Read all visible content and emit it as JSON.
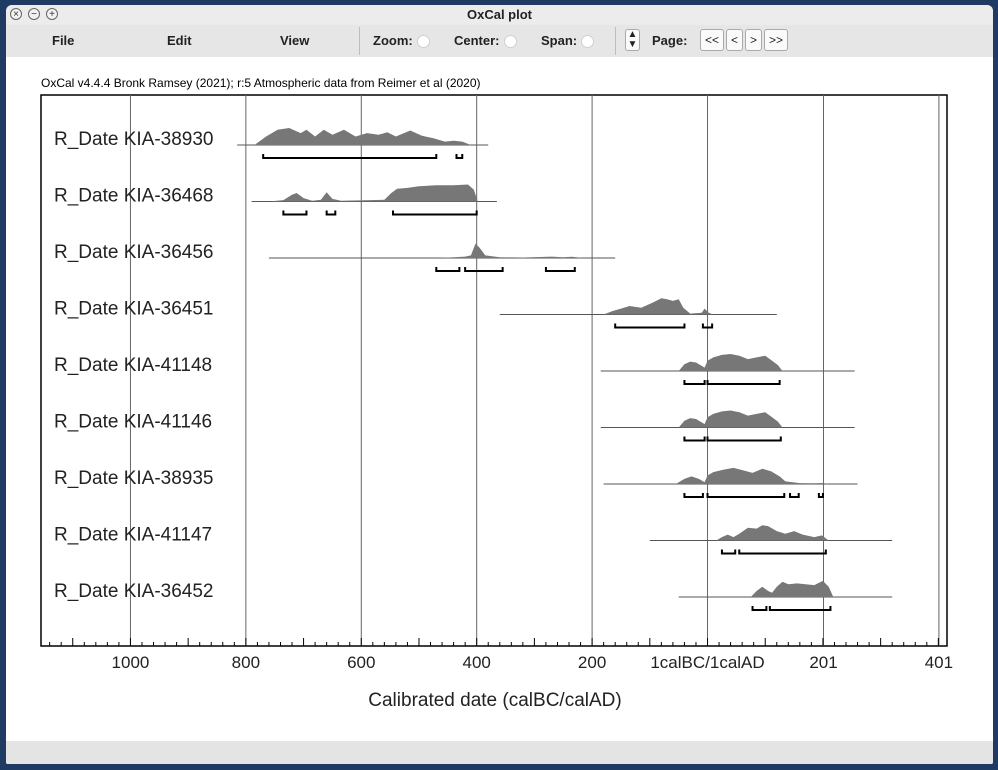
{
  "window": {
    "title": "OxCal plot"
  },
  "toolbar": {
    "file": "File",
    "edit": "Edit",
    "view": "View",
    "zoom": "Zoom:",
    "center": "Center:",
    "span": "Span:",
    "page": "Page:",
    "first": "<<",
    "prev": "<",
    "next": ">",
    "last": ">>"
  },
  "chart_data": {
    "type": "multiple-plot",
    "header": "OxCal v4.4.4 Bronk Ramsey (2021); r:5 Atmospheric data from Reimer et al (2020)",
    "xlabel": "Calibrated date (calBC/calAD)",
    "x_range": [
      -1155,
      415
    ],
    "tick_labels": [
      {
        "v": -1000,
        "label": "1000"
      },
      {
        "v": -800,
        "label": "800"
      },
      {
        "v": -600,
        "label": "600"
      },
      {
        "v": -400,
        "label": "400"
      },
      {
        "v": -200,
        "label": "200"
      },
      {
        "v": 0,
        "label": "1calBC/1calAD"
      },
      {
        "v": 201,
        "label": "201"
      },
      {
        "v": 401,
        "label": "401"
      }
    ],
    "gridlines": [
      -1000,
      -800,
      -600,
      -400,
      -200,
      0,
      201,
      401
    ],
    "dates": [
      {
        "name": "R_Date KIA-38930",
        "line": [
          -815,
          -380
        ],
        "hpd": [
          [
            -770,
            -470
          ],
          [
            -435,
            -425
          ]
        ],
        "dist": [
          [
            -785,
            0
          ],
          [
            -765,
            0.5
          ],
          [
            -745,
            0.9
          ],
          [
            -725,
            1
          ],
          [
            -705,
            0.7
          ],
          [
            -695,
            0.9
          ],
          [
            -680,
            0.5
          ],
          [
            -665,
            0.9
          ],
          [
            -650,
            0.6
          ],
          [
            -630,
            0.9
          ],
          [
            -610,
            0.5
          ],
          [
            -590,
            0.7
          ],
          [
            -570,
            0.6
          ],
          [
            -555,
            0.75
          ],
          [
            -540,
            0.5
          ],
          [
            -515,
            0.85
          ],
          [
            -495,
            0.55
          ],
          [
            -475,
            0.4
          ],
          [
            -455,
            0.2
          ],
          [
            -440,
            0.25
          ],
          [
            -425,
            0.2
          ],
          [
            -410,
            0
          ]
        ]
      },
      {
        "name": "R_Date KIA-36468",
        "line": [
          -790,
          -365
        ],
        "hpd": [
          [
            -735,
            -695
          ],
          [
            -660,
            -645
          ],
          [
            -545,
            -400
          ]
        ],
        "dist": [
          [
            -760,
            0
          ],
          [
            -735,
            0.08
          ],
          [
            -720,
            0.4
          ],
          [
            -712,
            0.5
          ],
          [
            -700,
            0.2
          ],
          [
            -685,
            0.05
          ],
          [
            -670,
            0.1
          ],
          [
            -660,
            0.55
          ],
          [
            -650,
            0.15
          ],
          [
            -635,
            0.05
          ],
          [
            -560,
            0.1
          ],
          [
            -548,
            0.5
          ],
          [
            -538,
            0.75
          ],
          [
            -520,
            0.8
          ],
          [
            -500,
            0.9
          ],
          [
            -470,
            0.95
          ],
          [
            -440,
            0.95
          ],
          [
            -415,
            1
          ],
          [
            -405,
            0.7
          ],
          [
            -398,
            0
          ]
        ]
      },
      {
        "name": "R_Date KIA-36456",
        "line": [
          -760,
          -160
        ],
        "hpd": [
          [
            -470,
            -430
          ],
          [
            -420,
            -355
          ],
          [
            -280,
            -230
          ]
        ],
        "dist": [
          [
            -470,
            0
          ],
          [
            -440,
            0.05
          ],
          [
            -420,
            0.08
          ],
          [
            -410,
            0.15
          ],
          [
            -402,
            0.85
          ],
          [
            -395,
            0.6
          ],
          [
            -385,
            0.15
          ],
          [
            -360,
            0.05
          ],
          [
            -320,
            0.03
          ],
          [
            -290,
            0.06
          ],
          [
            -270,
            0.08
          ],
          [
            -250,
            0.05
          ],
          [
            -235,
            0.07
          ],
          [
            -215,
            0
          ]
        ]
      },
      {
        "name": "R_Date KIA-36451",
        "line": [
          -360,
          120
        ],
        "hpd": [
          [
            -160,
            -40
          ],
          [
            -8,
            8
          ]
        ],
        "dist": [
          [
            -180,
            0
          ],
          [
            -165,
            0.2
          ],
          [
            -150,
            0.35
          ],
          [
            -135,
            0.5
          ],
          [
            -115,
            0.4
          ],
          [
            -95,
            0.7
          ],
          [
            -80,
            0.95
          ],
          [
            -70,
            0.9
          ],
          [
            -60,
            0.8
          ],
          [
            -50,
            0.9
          ],
          [
            -42,
            0.4
          ],
          [
            -30,
            0.05
          ],
          [
            -10,
            0.1
          ],
          [
            -5,
            0.35
          ],
          [
            2,
            0.1
          ],
          [
            10,
            0
          ]
        ]
      },
      {
        "name": "R_Date KIA-41148",
        "line": [
          -185,
          255
        ],
        "hpd": [
          [
            -40,
            -5
          ],
          [
            0,
            125
          ]
        ],
        "dist": [
          [
            -50,
            0
          ],
          [
            -40,
            0.4
          ],
          [
            -30,
            0.55
          ],
          [
            -20,
            0.5
          ],
          [
            -10,
            0.3
          ],
          [
            -5,
            0.2
          ],
          [
            0,
            0.6
          ],
          [
            10,
            0.8
          ],
          [
            25,
            0.95
          ],
          [
            40,
            1
          ],
          [
            55,
            0.9
          ],
          [
            70,
            0.7
          ],
          [
            85,
            0.8
          ],
          [
            100,
            0.9
          ],
          [
            112,
            0.6
          ],
          [
            122,
            0.35
          ],
          [
            130,
            0
          ]
        ]
      },
      {
        "name": "R_Date KIA-41146",
        "line": [
          -185,
          255
        ],
        "hpd": [
          [
            -40,
            -5
          ],
          [
            0,
            127
          ]
        ],
        "dist": [
          [
            -50,
            0
          ],
          [
            -40,
            0.4
          ],
          [
            -30,
            0.55
          ],
          [
            -20,
            0.5
          ],
          [
            -10,
            0.3
          ],
          [
            -5,
            0.2
          ],
          [
            0,
            0.6
          ],
          [
            10,
            0.8
          ],
          [
            25,
            0.95
          ],
          [
            40,
            1
          ],
          [
            55,
            0.9
          ],
          [
            70,
            0.7
          ],
          [
            85,
            0.8
          ],
          [
            100,
            0.9
          ],
          [
            112,
            0.6
          ],
          [
            122,
            0.35
          ],
          [
            130,
            0
          ]
        ]
      },
      {
        "name": "R_Date KIA-38935",
        "line": [
          -180,
          260
        ],
        "hpd": [
          [
            -40,
            -8
          ],
          [
            0,
            133
          ],
          [
            143,
            158
          ],
          [
            193,
            200
          ]
        ],
        "dist": [
          [
            -55,
            0
          ],
          [
            -40,
            0.3
          ],
          [
            -28,
            0.45
          ],
          [
            -15,
            0.3
          ],
          [
            -5,
            0.1
          ],
          [
            0,
            0.5
          ],
          [
            10,
            0.7
          ],
          [
            28,
            0.85
          ],
          [
            45,
            0.95
          ],
          [
            62,
            0.8
          ],
          [
            78,
            0.65
          ],
          [
            95,
            0.9
          ],
          [
            110,
            0.75
          ],
          [
            125,
            0.45
          ],
          [
            135,
            0.15
          ],
          [
            160,
            0.05
          ],
          [
            185,
            0.04
          ],
          [
            200,
            0.06
          ],
          [
            210,
            0
          ]
        ]
      },
      {
        "name": "R_Date KIA-41147",
        "line": [
          -100,
          320
        ],
        "hpd": [
          [
            25,
            48
          ],
          [
            55,
            205
          ]
        ],
        "dist": [
          [
            15,
            0
          ],
          [
            25,
            0.2
          ],
          [
            35,
            0.35
          ],
          [
            45,
            0.2
          ],
          [
            55,
            0.4
          ],
          [
            70,
            0.75
          ],
          [
            85,
            0.7
          ],
          [
            95,
            0.9
          ],
          [
            105,
            0.85
          ],
          [
            120,
            0.55
          ],
          [
            135,
            0.4
          ],
          [
            150,
            0.55
          ],
          [
            165,
            0.35
          ],
          [
            185,
            0.2
          ],
          [
            198,
            0.3
          ],
          [
            210,
            0
          ]
        ]
      },
      {
        "name": "R_Date KIA-36452",
        "line": [
          -50,
          320
        ],
        "hpd": [
          [
            78,
            102
          ],
          [
            108,
            213
          ]
        ],
        "dist": [
          [
            75,
            0
          ],
          [
            85,
            0.35
          ],
          [
            95,
            0.6
          ],
          [
            105,
            0.35
          ],
          [
            112,
            0.25
          ],
          [
            120,
            0.6
          ],
          [
            130,
            0.9
          ],
          [
            140,
            0.75
          ],
          [
            155,
            0.8
          ],
          [
            170,
            0.75
          ],
          [
            185,
            0.7
          ],
          [
            200,
            0.95
          ],
          [
            210,
            0.6
          ],
          [
            218,
            0
          ]
        ]
      }
    ]
  }
}
